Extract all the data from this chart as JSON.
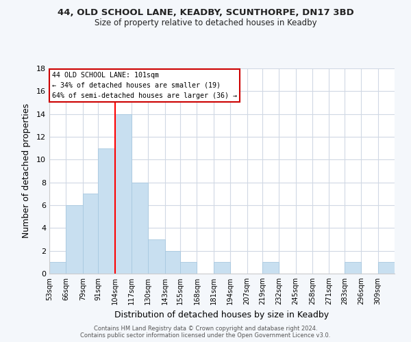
{
  "title": "44, OLD SCHOOL LANE, KEADBY, SCUNTHORPE, DN17 3BD",
  "subtitle": "Size of property relative to detached houses in Keadby",
  "xlabel": "Distribution of detached houses by size in Keadby",
  "ylabel": "Number of detached properties",
  "bar_color": "#c8dff0",
  "bar_edge_color": "#a8c8e0",
  "bin_labels": [
    "53sqm",
    "66sqm",
    "79sqm",
    "91sqm",
    "104sqm",
    "117sqm",
    "130sqm",
    "143sqm",
    "155sqm",
    "168sqm",
    "181sqm",
    "194sqm",
    "207sqm",
    "219sqm",
    "232sqm",
    "245sqm",
    "258sqm",
    "271sqm",
    "283sqm",
    "296sqm",
    "309sqm"
  ],
  "bin_edges": [
    53,
    66,
    79,
    91,
    104,
    117,
    130,
    143,
    155,
    168,
    181,
    194,
    207,
    219,
    232,
    245,
    258,
    271,
    283,
    296,
    309
  ],
  "counts": [
    1,
    6,
    7,
    11,
    14,
    8,
    3,
    2,
    1,
    0,
    1,
    0,
    0,
    1,
    0,
    0,
    0,
    0,
    1,
    0,
    1
  ],
  "ylim": [
    0,
    18
  ],
  "yticks": [
    0,
    2,
    4,
    6,
    8,
    10,
    12,
    14,
    16,
    18
  ],
  "red_line_x": 104,
  "annotation_title": "44 OLD SCHOOL LANE: 101sqm",
  "annotation_line1": "← 34% of detached houses are smaller (19)",
  "annotation_line2": "64% of semi-detached houses are larger (36) →",
  "footer1": "Contains HM Land Registry data © Crown copyright and database right 2024.",
  "footer2": "Contains public sector information licensed under the Open Government Licence v3.0.",
  "background_color": "#f4f7fb",
  "plot_background": "#ffffff",
  "grid_color": "#d0d8e4"
}
